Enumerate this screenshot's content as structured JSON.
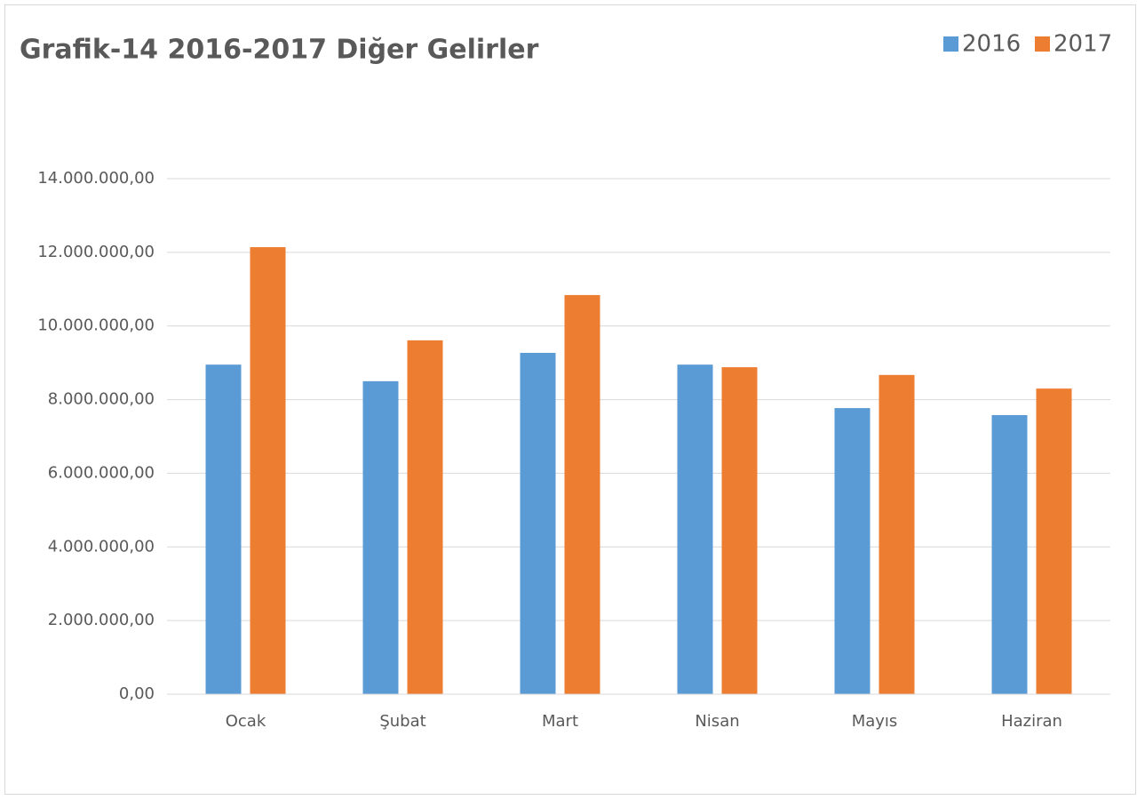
{
  "chart_data": {
    "type": "bar",
    "title": "Grafik-14 2016-2017 Diğer Gelirler",
    "categories": [
      "Ocak",
      "Şubat",
      "Mart",
      "Nisan",
      "Mayıs",
      "Haziran"
    ],
    "series": [
      {
        "name": "2016",
        "color": "#5b9bd5",
        "values": [
          8950000,
          8500000,
          9270000,
          8950000,
          7770000,
          7580000
        ]
      },
      {
        "name": "2017",
        "color": "#ed7d31",
        "values": [
          12140000,
          9610000,
          10840000,
          8880000,
          8670000,
          8300000
        ]
      }
    ],
    "ylim": [
      0,
      14000000
    ],
    "yticks": [
      {
        "value": 0,
        "label": "0,00"
      },
      {
        "value": 2000000,
        "label": "2.000.000,00"
      },
      {
        "value": 4000000,
        "label": "4.000.000,00"
      },
      {
        "value": 6000000,
        "label": "6.000.000,00"
      },
      {
        "value": 8000000,
        "label": "8.000.000,00"
      },
      {
        "value": 10000000,
        "label": "10.000.000,00"
      },
      {
        "value": 12000000,
        "label": "12.000.000,00"
      },
      {
        "value": 14000000,
        "label": "14.000.000,00"
      }
    ],
    "grid": true,
    "legend": "top-right"
  }
}
